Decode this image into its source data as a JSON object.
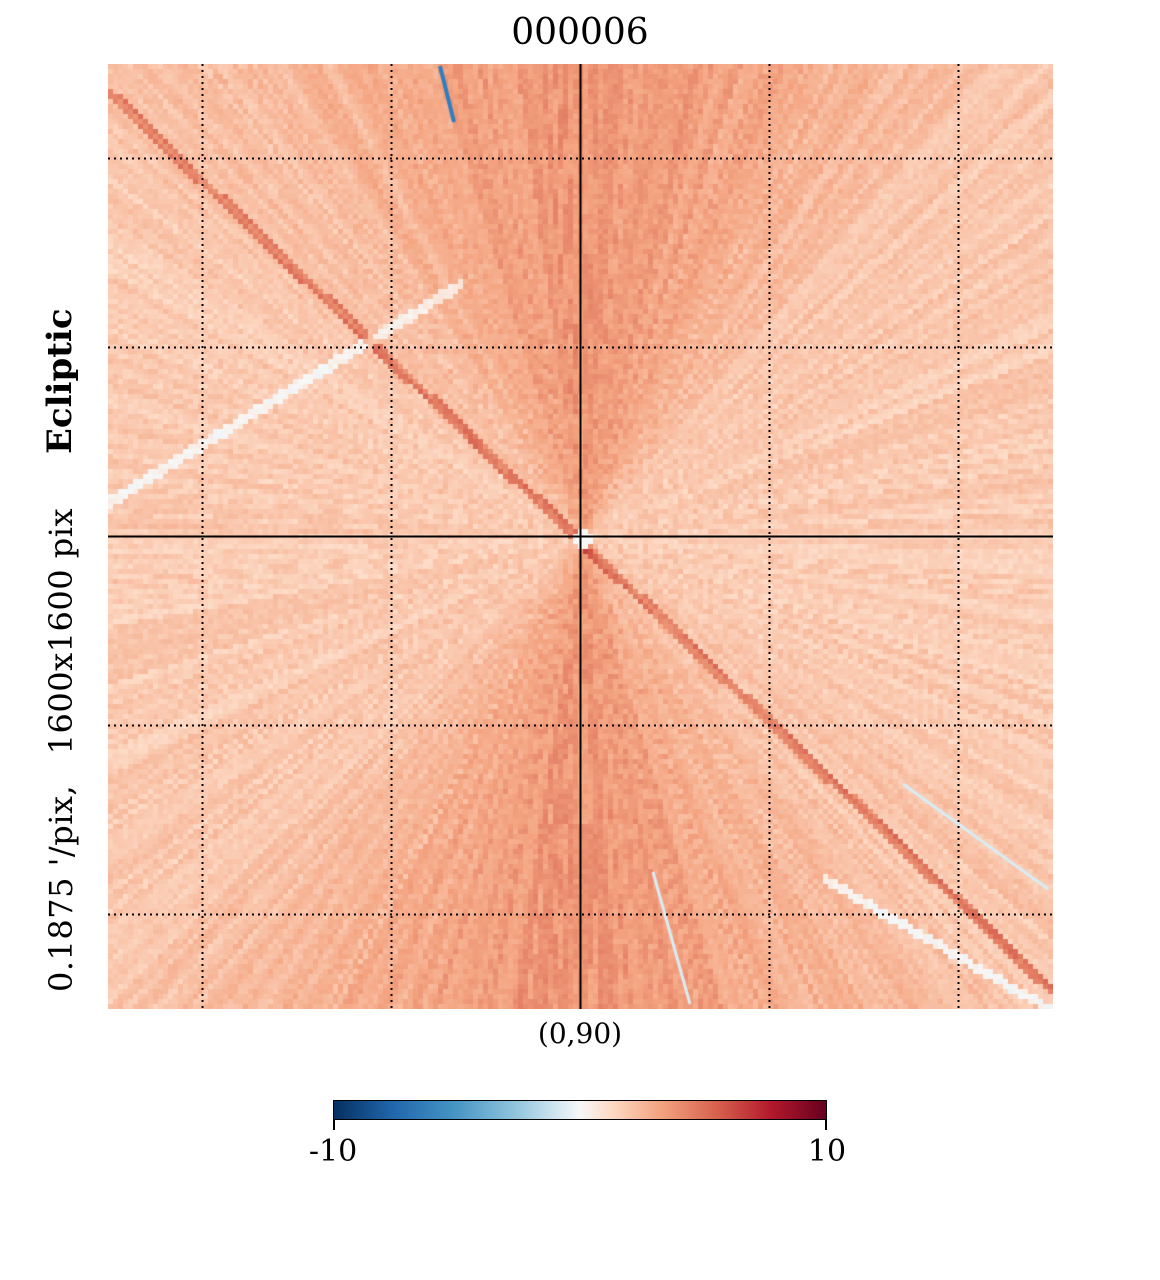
{
  "figure": {
    "title": "000006",
    "frame_label": "Ecliptic",
    "resolution_label": "0.1875 '/pix,",
    "size_label": "1600x1600 pix",
    "center_label": "(0,90)"
  },
  "colorbar": {
    "colormap": "RdBu_r",
    "min_label": "-10",
    "max_label": "10",
    "min": -10,
    "max": 10,
    "colors": [
      "#053061",
      "#2166ac",
      "#4393c3",
      "#92c5de",
      "#d1e5f0",
      "#f7f7f7",
      "#fddbc7",
      "#f4a582",
      "#d6604d",
      "#b2182b",
      "#67001f"
    ]
  },
  "chart_data": {
    "type": "heatmap",
    "title": "000006",
    "projection": "gnomonic",
    "coord": "Ecliptic",
    "center": "(0,90)",
    "resolution_arcmin_per_pix": 0.1875,
    "size_pix": [
      1600,
      1600
    ],
    "value_range": [
      -10,
      10
    ],
    "graticule": true
  }
}
